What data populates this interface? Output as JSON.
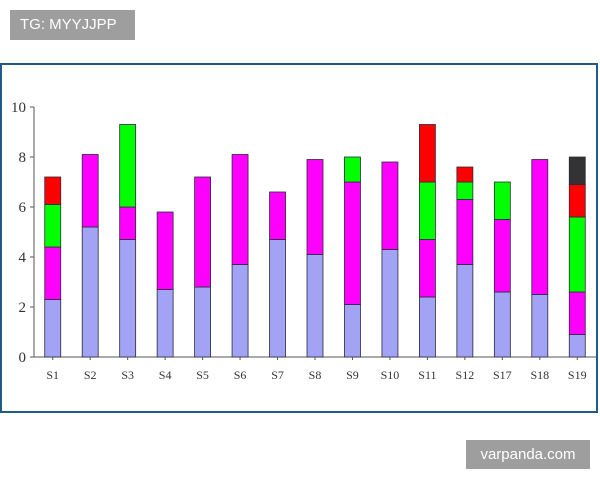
{
  "overlay": {
    "tag_text": "TG: MYYJJPP",
    "watermark_text": "varpanda.com"
  },
  "chart_data": {
    "type": "bar",
    "stacked": true,
    "title": "",
    "xlabel": "",
    "ylabel": "",
    "ylim": [
      0,
      10
    ],
    "yticks": [
      0,
      2,
      4,
      6,
      8,
      10
    ],
    "grid": false,
    "legend": "none",
    "categories": [
      "S1",
      "S2",
      "S3",
      "S4",
      "S5",
      "S6",
      "S7",
      "S8",
      "S9",
      "S10",
      "S11",
      "S12",
      "S17",
      "S18",
      "S19"
    ],
    "series": [
      {
        "color": "#a3a3f5",
        "values": [
          2.3,
          5.2,
          4.7,
          2.7,
          2.8,
          3.7,
          4.7,
          4.1,
          2.1,
          4.3,
          2.4,
          3.7,
          2.6,
          2.5,
          0.9
        ]
      },
      {
        "color": "#ff00ff",
        "values": [
          2.1,
          2.9,
          1.3,
          3.1,
          4.4,
          4.4,
          1.9,
          3.8,
          4.9,
          3.5,
          2.3,
          2.6,
          2.9,
          5.4,
          1.7
        ]
      },
      {
        "color": "#00ff00",
        "values": [
          1.7,
          0,
          3.3,
          0,
          0,
          0,
          0,
          0,
          1.0,
          0,
          2.3,
          0.7,
          1.5,
          0,
          3.0
        ]
      },
      {
        "color": "#ff0000",
        "values": [
          1.1,
          0,
          0,
          0,
          0,
          0,
          0,
          0,
          0,
          0,
          2.3,
          0.6,
          0,
          0,
          1.3
        ]
      },
      {
        "color": "#333333",
        "values": [
          0,
          0,
          0,
          0,
          0,
          0,
          0,
          0,
          0,
          0,
          0,
          0,
          0,
          0,
          1.1
        ]
      }
    ]
  }
}
